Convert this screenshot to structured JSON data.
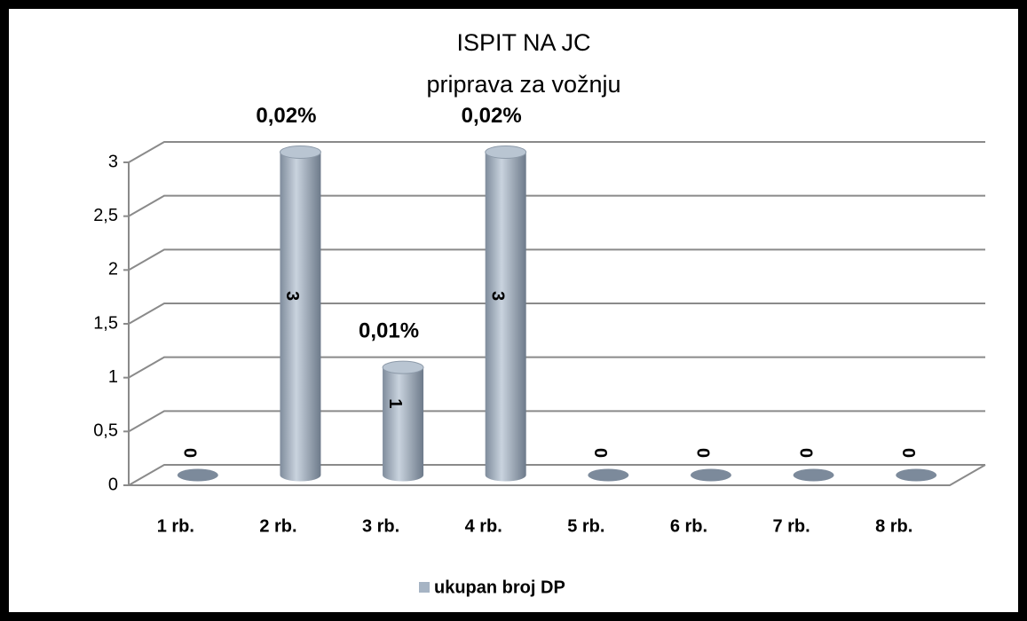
{
  "chart_data": {
    "type": "bar",
    "title": [
      "ISPIT NA JC",
      "priprava za vožnju"
    ],
    "categories": [
      "1 rb.",
      "2 rb.",
      "3 rb.",
      "4 rb.",
      "5 rb.",
      "6 rb.",
      "7 rb.",
      "8 rb."
    ],
    "series": [
      {
        "name": "ukupan broj DP",
        "color": "#a6b4c4",
        "values": [
          0,
          3,
          1,
          3,
          0,
          0,
          0,
          0
        ]
      }
    ],
    "percent_labels": [
      null,
      "0,02%",
      "0,01%",
      "0,02%",
      null,
      null,
      null,
      null
    ],
    "ylim": [
      0,
      3
    ],
    "yticks": [
      0,
      {
        "value": 0.5,
        "label": "0,5"
      },
      1,
      {
        "value": 1.5,
        "label": "1,5"
      },
      2,
      {
        "value": 2.5,
        "label": "2,5"
      },
      3
    ],
    "grid": true,
    "legend": "bottom"
  }
}
